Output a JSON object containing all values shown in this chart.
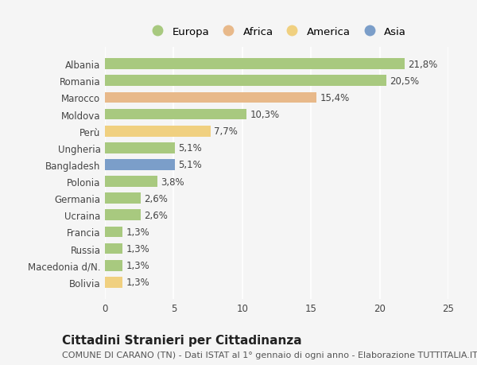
{
  "categories": [
    "Albania",
    "Romania",
    "Marocco",
    "Moldova",
    "Perù",
    "Ungheria",
    "Bangladesh",
    "Polonia",
    "Germania",
    "Ucraina",
    "Francia",
    "Russia",
    "Macedonia d/N.",
    "Bolivia"
  ],
  "values": [
    21.8,
    20.5,
    15.4,
    10.3,
    7.7,
    5.1,
    5.1,
    3.8,
    2.6,
    2.6,
    1.3,
    1.3,
    1.3,
    1.3
  ],
  "labels": [
    "21,8%",
    "20,5%",
    "15,4%",
    "10,3%",
    "7,7%",
    "5,1%",
    "5,1%",
    "3,8%",
    "2,6%",
    "2,6%",
    "1,3%",
    "1,3%",
    "1,3%",
    "1,3%"
  ],
  "colors": [
    "#a8c97f",
    "#a8c97f",
    "#e8b98a",
    "#a8c97f",
    "#f0d080",
    "#a8c97f",
    "#7b9ec9",
    "#a8c97f",
    "#a8c97f",
    "#a8c97f",
    "#a8c97f",
    "#a8c97f",
    "#a8c97f",
    "#f0d080"
  ],
  "legend_labels": [
    "Europa",
    "Africa",
    "America",
    "Asia"
  ],
  "legend_colors": [
    "#a8c97f",
    "#e8b98a",
    "#f0d080",
    "#7b9ec9"
  ],
  "xlim": [
    0,
    25
  ],
  "xticks": [
    0,
    5,
    10,
    15,
    20,
    25
  ],
  "title": "Cittadini Stranieri per Cittadinanza",
  "subtitle": "COMUNE DI CARANO (TN) - Dati ISTAT al 1° gennaio di ogni anno - Elaborazione TUTTITALIA.IT",
  "bg_color": "#f5f5f5",
  "bar_height": 0.65,
  "label_fontsize": 8.5,
  "tick_fontsize": 8.5,
  "legend_fontsize": 9.5,
  "title_fontsize": 11,
  "subtitle_fontsize": 8
}
